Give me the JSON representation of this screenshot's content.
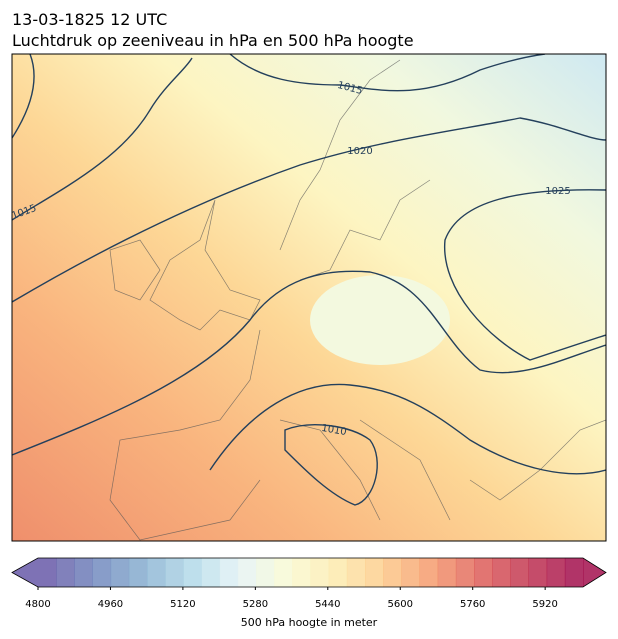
{
  "header": {
    "date": "13-03-1825 12 UTC",
    "title": "Luchtdruk op zeeniveau in hPa en 500 hPa hoogte"
  },
  "map": {
    "contour_labels": [
      "1015",
      "1015",
      "1020",
      "1025",
      "1010"
    ]
  },
  "colorbar": {
    "ticks": [
      4800,
      4960,
      5120,
      5280,
      5440,
      5600,
      5760,
      5920
    ],
    "label": "500 hPa hoogte in meter"
  }
}
